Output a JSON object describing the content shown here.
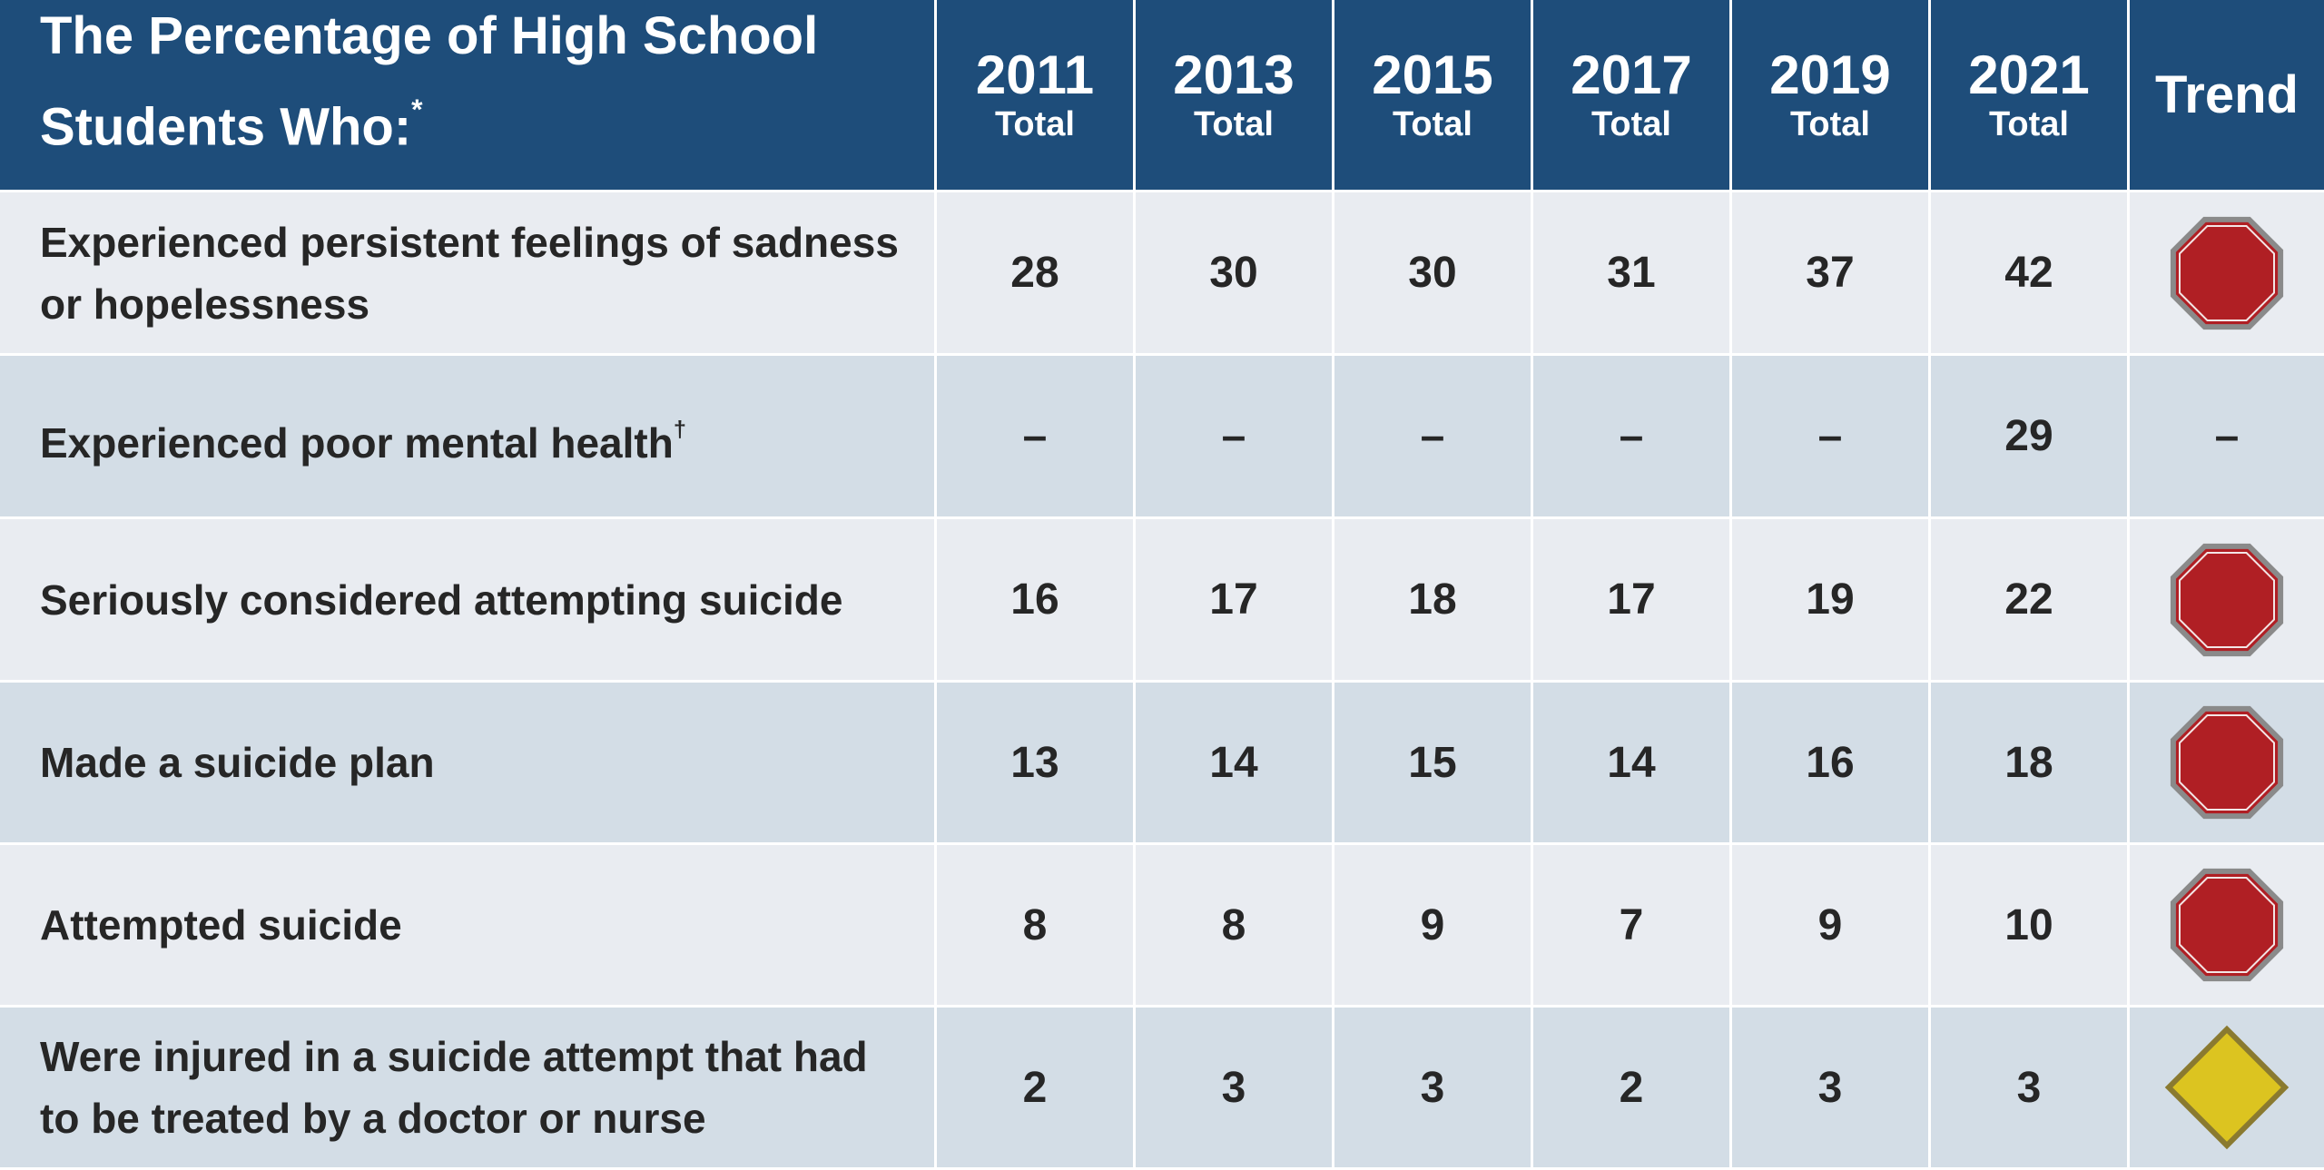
{
  "header": {
    "title": "The Percentage of High School Students Who:",
    "title_note": "*",
    "years": [
      "2011",
      "2013",
      "2015",
      "2017",
      "2019",
      "2021"
    ],
    "year_sub": "Total",
    "trend": "Trend"
  },
  "table": {
    "rows": [
      {
        "label": "Experienced persistent feelings of sadness or hopelessness",
        "values": [
          "28",
          "30",
          "30",
          "31",
          "37",
          "42"
        ]
      },
      {
        "label": "Experienced poor mental health",
        "note": "†",
        "values": [
          "–",
          "–",
          "–",
          "–",
          "–",
          "29"
        ],
        "trend": "–"
      },
      {
        "label": "Seriously considered attempting suicide",
        "values": [
          "16",
          "17",
          "18",
          "17",
          "19",
          "22"
        ]
      },
      {
        "label": "Made a suicide plan",
        "values": [
          "13",
          "14",
          "15",
          "14",
          "16",
          "18"
        ]
      },
      {
        "label": "Attempted suicide",
        "values": [
          "8",
          "8",
          "9",
          "7",
          "9",
          "10"
        ]
      },
      {
        "label": "Were injured in a suicide attempt that had to be treated by a doctor or nurse",
        "values": [
          "2",
          "3",
          "3",
          "2",
          "3",
          "3"
        ]
      }
    ]
  }
}
